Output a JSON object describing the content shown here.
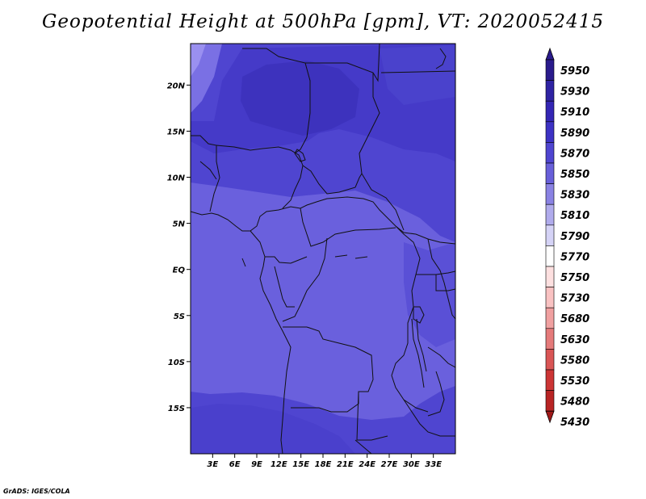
{
  "title": "Geopotential Height at 500hPa [gpm], VT: 2020052415",
  "credit": "GrADS: IGES/COLA",
  "map": {
    "lon_range": [
      0,
      36
    ],
    "lat_range": [
      -20,
      24.5
    ],
    "lat_ticks": [
      {
        "value": 20,
        "label": "20N"
      },
      {
        "value": 15,
        "label": "15N"
      },
      {
        "value": 10,
        "label": "10N"
      },
      {
        "value": 5,
        "label": "5N"
      },
      {
        "value": 0,
        "label": "EQ"
      },
      {
        "value": -5,
        "label": "5S"
      },
      {
        "value": -10,
        "label": "10S"
      },
      {
        "value": -15,
        "label": "15S"
      }
    ],
    "lon_ticks": [
      {
        "value": 3,
        "label": "3E"
      },
      {
        "value": 6,
        "label": "6E"
      },
      {
        "value": 9,
        "label": "9E"
      },
      {
        "value": 12,
        "label": "12E"
      },
      {
        "value": 15,
        "label": "15E"
      },
      {
        "value": 18,
        "label": "18E"
      },
      {
        "value": 21,
        "label": "21E"
      },
      {
        "value": 24,
        "label": "24E"
      },
      {
        "value": 27,
        "label": "27E"
      },
      {
        "value": 30,
        "label": "30E"
      },
      {
        "value": 33,
        "label": "33E"
      }
    ]
  },
  "colorbar": {
    "levels": [
      "5950",
      "5930",
      "5910",
      "5890",
      "5870",
      "5850",
      "5830",
      "5810",
      "5790",
      "5770",
      "5750",
      "5730",
      "5680",
      "5630",
      "5580",
      "5530",
      "5480",
      "5430"
    ],
    "colors": [
      "#2a1b8c",
      "#2f23a3",
      "#3426b4",
      "#3d32c4",
      "#4f45d0",
      "#685fd9",
      "#8a82e3",
      "#b0abec",
      "#d5d3f6",
      "#ffffff",
      "#fde0e0",
      "#f9c2c2",
      "#f0a0a0",
      "#e57a7a",
      "#d95555",
      "#cc3535",
      "#b82424",
      "#a01818"
    ]
  },
  "colors": {
    "shade_5850": "#6a60dd",
    "shade_5870": "#5a50d6",
    "shade_5890": "#4a3fcc",
    "shade_5910": "#3f34c2",
    "shade_5830": "#8b80ec",
    "boundary": "#111111"
  }
}
